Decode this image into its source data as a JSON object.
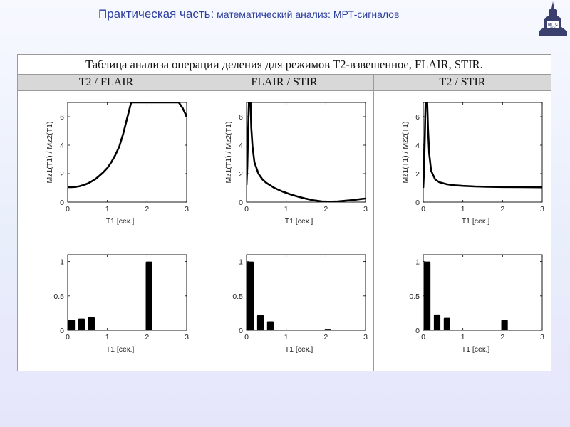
{
  "slide": {
    "title_part": "Практическая часть:",
    "title_rest": " математический анализ: МРТ-сигналов",
    "logo_text": "МГТС\nМГУ"
  },
  "table": {
    "title": "Таблица анализа операции деления для режимов Т2-взвешенное, FLAIR, STIR.",
    "columns": [
      "T2 / FLAIR",
      "FLAIR / STIR",
      "T2 / STIR"
    ]
  },
  "colors": {
    "title": "#2e3f9e",
    "header_bg": "#d8d8d8",
    "ink": "#000000"
  },
  "chart_data": [
    {
      "type": "line",
      "column": "T2 / FLAIR",
      "xlabel": "T1  [сек.]",
      "ylabel": "Mz1(T1) / Mz2(T1)",
      "xlim": [
        0,
        3
      ],
      "ylim": [
        0,
        7
      ],
      "xticks": [
        "0",
        "1",
        "2",
        "3"
      ],
      "yticks": [
        "0",
        "2",
        "4",
        "6"
      ],
      "x": [
        0,
        0.1,
        0.2,
        0.3,
        0.4,
        0.5,
        0.6,
        0.7,
        0.8,
        0.9,
        1.0,
        1.1,
        1.2,
        1.3,
        1.4,
        1.5,
        1.6,
        1.7,
        1.8,
        2.0,
        2.2,
        2.4,
        2.6,
        2.8,
        2.9,
        3.0
      ],
      "y": [
        1.05,
        1.05,
        1.07,
        1.12,
        1.2,
        1.3,
        1.45,
        1.62,
        1.85,
        2.1,
        2.4,
        2.8,
        3.3,
        3.9,
        4.8,
        5.9,
        7,
        7,
        7,
        7,
        7,
        7,
        7,
        7,
        6.6,
        6.0
      ]
    },
    {
      "type": "line",
      "column": "FLAIR / STIR",
      "xlabel": "T1  [сек.]",
      "ylabel": "Mz1(T1) / Mz2(T1)",
      "xlim": [
        0,
        3
      ],
      "ylim": [
        0,
        7
      ],
      "xticks": [
        "0",
        "1",
        "2",
        "3"
      ],
      "yticks": [
        "0",
        "2",
        "4",
        "6"
      ],
      "x": [
        0,
        0.02,
        0.04,
        0.06,
        0.08,
        0.1,
        0.12,
        0.15,
        0.2,
        0.3,
        0.4,
        0.5,
        0.7,
        0.9,
        1.1,
        1.3,
        1.5,
        1.7,
        1.9,
        2.1,
        2.3,
        2.5,
        2.7,
        2.9,
        3.0
      ],
      "y": [
        1.2,
        2.5,
        5.0,
        7,
        7,
        7,
        5.2,
        3.9,
        2.8,
        2.0,
        1.6,
        1.35,
        1.0,
        0.75,
        0.55,
        0.38,
        0.24,
        0.12,
        0.05,
        0.03,
        0.05,
        0.1,
        0.15,
        0.22,
        0.25
      ]
    },
    {
      "type": "line",
      "column": "T2 / STIR",
      "xlabel": "T1  [сек.]",
      "ylabel": "Mz1(T1) / Mz2(T1)",
      "xlim": [
        0,
        3
      ],
      "ylim": [
        0,
        7
      ],
      "xticks": [
        "0",
        "1",
        "2",
        "3"
      ],
      "yticks": [
        "0",
        "2",
        "4",
        "6"
      ],
      "x": [
        0,
        0.02,
        0.04,
        0.06,
        0.08,
        0.1,
        0.12,
        0.15,
        0.2,
        0.3,
        0.4,
        0.6,
        0.8,
        1.0,
        1.3,
        1.6,
        2.0,
        2.5,
        3.0
      ],
      "y": [
        1.0,
        2.2,
        4.5,
        7,
        7,
        7,
        5.2,
        3.4,
        2.2,
        1.6,
        1.4,
        1.25,
        1.18,
        1.14,
        1.1,
        1.08,
        1.06,
        1.05,
        1.04
      ]
    },
    {
      "type": "bar",
      "column": "T2 / FLAIR",
      "xlabel": "T1  [сек.]",
      "xlim": [
        0,
        3
      ],
      "ylim": [
        0,
        1.1
      ],
      "xticks": [
        "0",
        "1",
        "2",
        "3"
      ],
      "yticks": [
        "0",
        "0.5",
        "1"
      ],
      "x": [
        0.1,
        0.35,
        0.6,
        2.05
      ],
      "values": [
        0.15,
        0.17,
        0.19,
        1.0
      ]
    },
    {
      "type": "bar",
      "column": "FLAIR / STIR",
      "xlabel": "T1  [сек.]",
      "xlim": [
        0,
        3
      ],
      "ylim": [
        0,
        1.1
      ],
      "xticks": [
        "0",
        "1",
        "2",
        "3"
      ],
      "yticks": [
        "0",
        "0.5",
        "1"
      ],
      "x": [
        0.1,
        0.35,
        0.6,
        2.05
      ],
      "values": [
        1.0,
        0.22,
        0.13,
        0.02
      ]
    },
    {
      "type": "bar",
      "column": "T2 / STIR",
      "xlabel": "T1  [сек.]",
      "xlim": [
        0,
        3
      ],
      "ylim": [
        0,
        1.1
      ],
      "xticks": [
        "0",
        "1",
        "2",
        "3"
      ],
      "yticks": [
        "0",
        "0.5",
        "1"
      ],
      "x": [
        0.1,
        0.35,
        0.6,
        2.05
      ],
      "values": [
        1.0,
        0.23,
        0.18,
        0.15
      ]
    }
  ]
}
